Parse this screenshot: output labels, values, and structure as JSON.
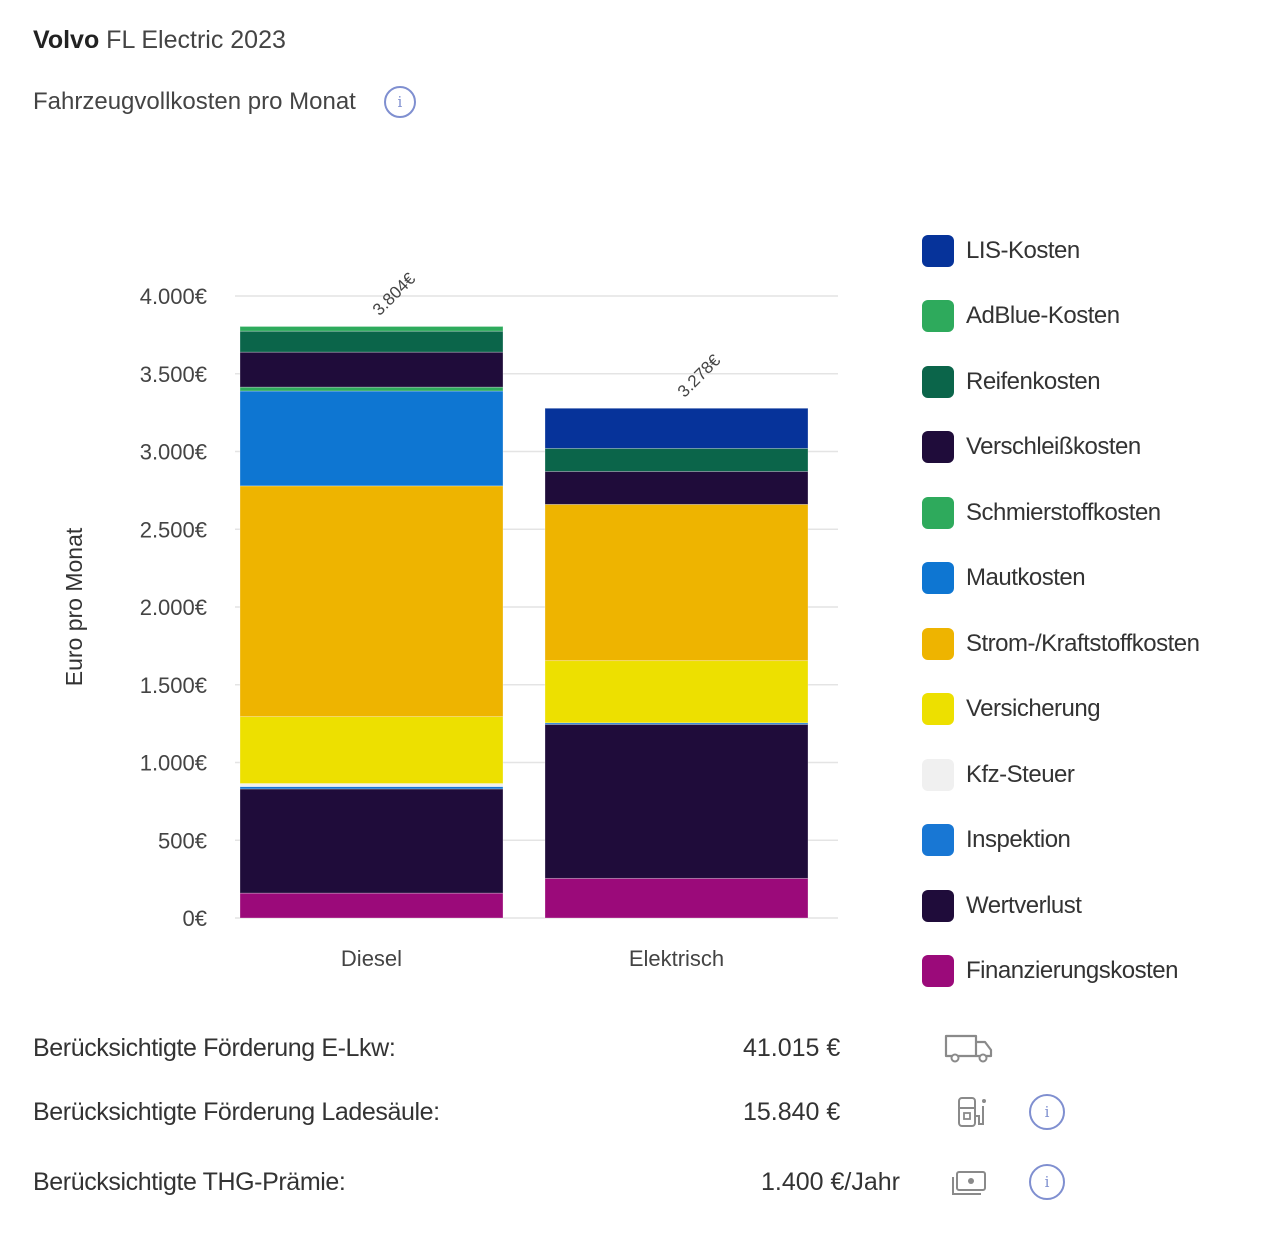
{
  "header": {
    "brand": "Volvo",
    "model": "FL Electric 2023",
    "subtitle": "Fahrzeugvollkosten pro Monat",
    "info_icon": "info-icon"
  },
  "chart_data": {
    "type": "bar",
    "stacked": true,
    "title": "Fahrzeugvollkosten pro Monat",
    "xlabel": "",
    "ylabel": "Euro pro Monat",
    "ylim": [
      0,
      4000
    ],
    "yticks": [
      0,
      500,
      1000,
      1500,
      2000,
      2500,
      3000,
      3500,
      4000
    ],
    "ytick_labels": [
      "0€",
      "500€",
      "1.000€",
      "1.500€",
      "2.000€",
      "2.500€",
      "3.000€",
      "3.500€",
      "4.000€"
    ],
    "grid": true,
    "legend_position": "right",
    "categories": [
      "Diesel",
      "Elektrisch"
    ],
    "totals": [
      3804,
      3278
    ],
    "total_labels": [
      "3.804€",
      "3.278€"
    ],
    "series": [
      {
        "name": "Finanzierungskosten",
        "color": "#9b0a7a",
        "values": [
          160,
          255
        ]
      },
      {
        "name": "Wertverlust",
        "color": "#1f0c3a",
        "values": [
          670,
          990
        ]
      },
      {
        "name": "Inspektion",
        "color": "#1877d4",
        "values": [
          15,
          10
        ]
      },
      {
        "name": "Kfz-Steuer",
        "color": "#f0f0f0",
        "values": [
          20,
          0
        ]
      },
      {
        "name": "Versicherung",
        "color": "#ede000",
        "values": [
          430,
          400
        ]
      },
      {
        "name": "Strom-/Kraftstoffkosten",
        "color": "#eeb400",
        "values": [
          1484,
          1005
        ]
      },
      {
        "name": "Mautkosten",
        "color": "#0e76d2",
        "values": [
          610,
          0
        ]
      },
      {
        "name": "Schmierstoffkosten",
        "color": "#2eaa5c",
        "values": [
          25,
          0
        ]
      },
      {
        "name": "Verschleißkosten",
        "color": "#1f0c3a",
        "values": [
          225,
          212
        ]
      },
      {
        "name": "Reifenkosten",
        "color": "#0b654a",
        "values": [
          135,
          148
        ]
      },
      {
        "name": "AdBlue-Kosten",
        "color": "#2eaa5c",
        "values": [
          30,
          0
        ]
      },
      {
        "name": "LIS-Kosten",
        "color": "#06339a",
        "values": [
          0,
          258
        ]
      }
    ],
    "legend": [
      {
        "name": "LIS-Kosten",
        "color": "#06339a"
      },
      {
        "name": "AdBlue-Kosten",
        "color": "#2eaa5c"
      },
      {
        "name": "Reifenkosten",
        "color": "#0b654a"
      },
      {
        "name": "Verschleißkosten",
        "color": "#1f0c3a"
      },
      {
        "name": "Schmierstoffkosten",
        "color": "#2eaa5c"
      },
      {
        "name": "Mautkosten",
        "color": "#0e76d2"
      },
      {
        "name": "Strom-/Kraftstoffkosten",
        "color": "#eeb400"
      },
      {
        "name": "Versicherung",
        "color": "#ede000"
      },
      {
        "name": "Kfz-Steuer",
        "color": "#f0f0f0"
      },
      {
        "name": "Inspektion",
        "color": "#1877d4"
      },
      {
        "name": "Wertverlust",
        "color": "#1f0c3a"
      },
      {
        "name": "Finanzierungskosten",
        "color": "#9b0a7a"
      }
    ]
  },
  "subsidies": [
    {
      "label": "Berücksichtigte Förderung E-Lkw:",
      "value": "41.015 €",
      "icon": "truck-icon",
      "info": false
    },
    {
      "label": "Berücksichtigte Förderung Ladesäule:",
      "value": "15.840 €",
      "icon": "charging-station-icon",
      "info": true
    },
    {
      "label": "Berücksichtigte THG-Prämie:",
      "value": "1.400 €/Jahr",
      "icon": "money-icon",
      "info": true
    }
  ],
  "info_glyph": "i"
}
